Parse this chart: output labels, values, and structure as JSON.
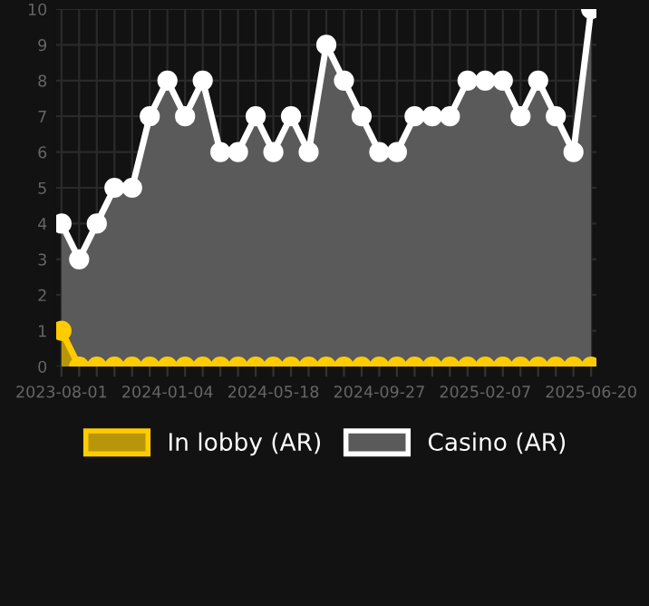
{
  "chart_data": {
    "type": "area",
    "categories": [
      "2023-08-01",
      null,
      null,
      null,
      null,
      null,
      "2024-01-04",
      null,
      null,
      null,
      null,
      null,
      "2024-05-18",
      null,
      null,
      null,
      null,
      null,
      "2024-09-27",
      null,
      null,
      null,
      null,
      null,
      "2025-02-07",
      null,
      null,
      null,
      null,
      null,
      "2025-06-20"
    ],
    "series": [
      {
        "name": "In lobby (AR)",
        "color": "#ffcc00",
        "values": [
          1,
          0,
          0,
          0,
          0,
          0,
          0,
          0,
          0,
          0,
          0,
          0,
          0,
          0,
          0,
          0,
          0,
          0,
          0,
          0,
          0,
          0,
          0,
          0,
          0,
          0,
          0,
          0,
          0,
          0,
          0
        ]
      },
      {
        "name": "Casino (AR)",
        "color": "#ffffff",
        "values": [
          4,
          3,
          4,
          5,
          5,
          7,
          8,
          7,
          8,
          6,
          6,
          7,
          6,
          7,
          6,
          9,
          8,
          7,
          6,
          6,
          7,
          7,
          7,
          8,
          8,
          8,
          7,
          8,
          7,
          6,
          10
        ]
      }
    ],
    "ylim": [
      0,
      10
    ],
    "yticks": [
      0,
      1,
      2,
      3,
      4,
      5,
      6,
      7,
      8,
      9,
      10
    ],
    "grid": true,
    "legend": "bottom",
    "marker": "circle",
    "line_style": "solid"
  }
}
